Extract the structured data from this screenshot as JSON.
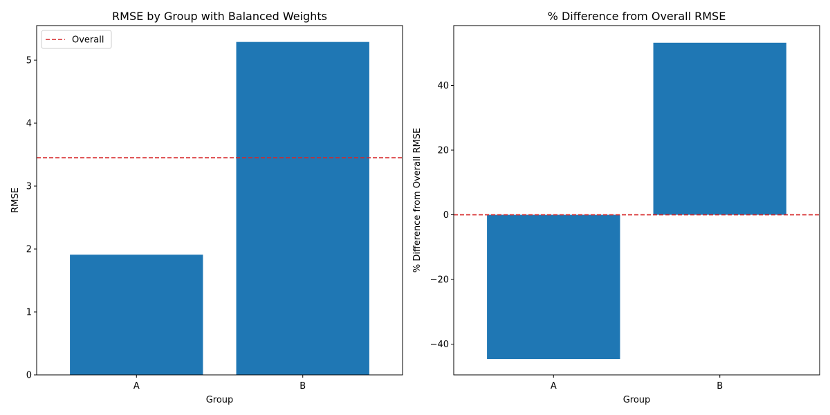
{
  "chart_data": [
    {
      "type": "bar",
      "title": "RMSE by Group with Balanced Weights",
      "xlabel": "Group",
      "ylabel": "RMSE",
      "categories": [
        "A",
        "B"
      ],
      "values": [
        1.91,
        5.29
      ],
      "ylim": [
        0,
        5.55
      ],
      "yticks": [
        0,
        1,
        2,
        3,
        4,
        5
      ],
      "bar_color": "#1f77b4",
      "reference_line": {
        "label": "Overall",
        "value": 3.45,
        "color": "#d62728",
        "style": "dashed"
      },
      "legend": {
        "entries": [
          "Overall"
        ],
        "placement": "top-left"
      },
      "grid": false
    },
    {
      "type": "bar",
      "title": "% Difference from Overall RMSE",
      "xlabel": "Group",
      "ylabel": "% Difference from Overall RMSE",
      "categories": [
        "A",
        "B"
      ],
      "values": [
        -44.6,
        53.2
      ],
      "ylim": [
        -49.5,
        58.5
      ],
      "yticks": [
        -40,
        -20,
        0,
        20,
        40
      ],
      "bar_color": "#1f77b4",
      "reference_line": {
        "value": 0,
        "color": "#d62728",
        "style": "dashed"
      },
      "grid": false
    }
  ]
}
